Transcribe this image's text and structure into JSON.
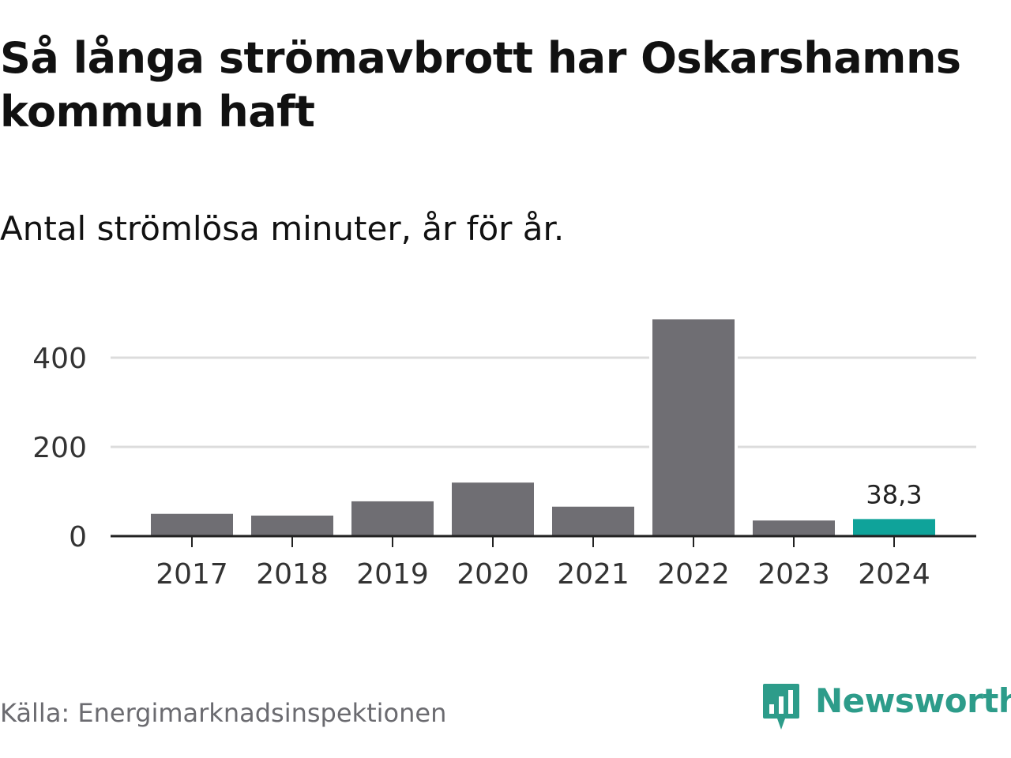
{
  "title": "Så långa strömavbrott har Oskarshamns kommun haft",
  "subtitle": "Antal strömlösa minuter, år för år.",
  "source": "Källa: Energimarknadsinspektionen",
  "logo": {
    "text": "Newsworthy",
    "icon": "newsworthy-logo-icon",
    "color": "#2d9c8a"
  },
  "colors": {
    "bar": "#6f6e73",
    "highlight": "#0fa39a",
    "grid": "#dcdcdc",
    "axis": "#222222"
  },
  "chart_data": {
    "type": "bar",
    "title": "",
    "xlabel": "",
    "ylabel": "",
    "categories": [
      "2017",
      "2018",
      "2019",
      "2020",
      "2021",
      "2022",
      "2023",
      "2024"
    ],
    "values": [
      50,
      46,
      78,
      120,
      66,
      486,
      35,
      38.3
    ],
    "highlight_index": 7,
    "data_labels": [
      {
        "index": 7,
        "text": "38,3"
      }
    ],
    "yticks": [
      0,
      200,
      400
    ],
    "ylim": [
      0,
      500
    ],
    "grid": true
  }
}
